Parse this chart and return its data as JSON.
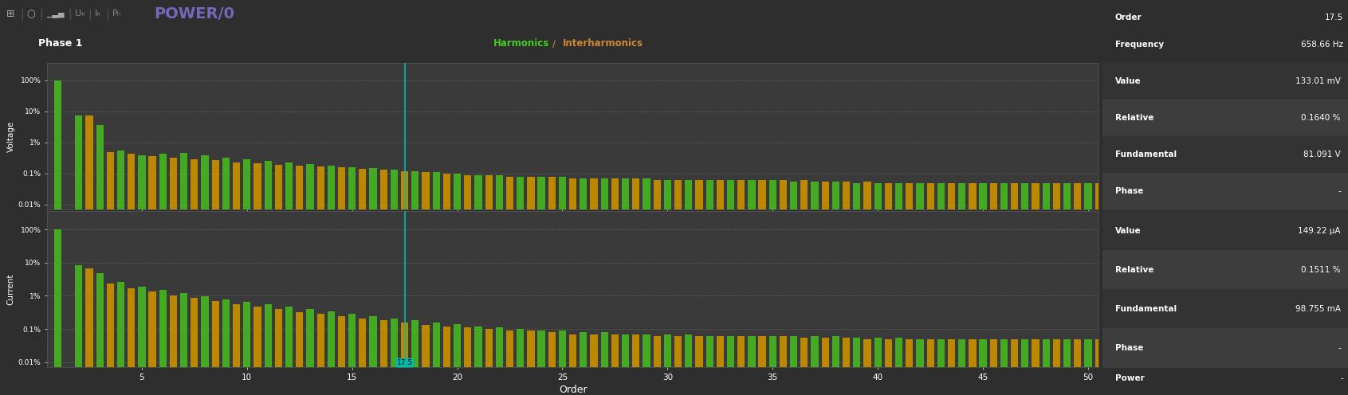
{
  "bg": "#2e2e2e",
  "toolbar_bg": "#222222",
  "label_strip_bg": "#2e2e2e",
  "plot_bg": "#3a3a3a",
  "right_bg": "#2e2e2e",
  "panel_dark": "#333333",
  "panel_light": "#3d3d3d",
  "title": "POWER/0",
  "title_color": "#7766bb",
  "phase_label": "Phase 1",
  "harm_label": "Harmonics",
  "harm_color": "#44cc22",
  "slash": "/",
  "slash_color": "#cc8833",
  "inter_label": "Interharmonics",
  "inter_color": "#cc8833",
  "volt_ylabel": "Voltage",
  "curr_ylabel": "Current",
  "xlabel": "Order",
  "selected_order": 17.5,
  "sel_color": "#00bbaa",
  "bar_green": "#44aa22",
  "bar_orange": "#bb8800",
  "grid_dash_color": "#666666",
  "ytick_labels": [
    "0.01%",
    "0.1%",
    "1%",
    "10%",
    "100%"
  ],
  "ytick_vals": [
    0.0001,
    0.001,
    0.01,
    0.1,
    1.0
  ],
  "order_str": "17.5",
  "freq_str": "658.66 Hz",
  "v_value": "133.01 mV",
  "v_relative": "0.1640 %",
  "v_fundamental": "81.091 V",
  "v_phase": "-",
  "c_value": "149.22 μA",
  "c_relative": "0.1511 %",
  "c_fundamental": "98.755 mA",
  "c_phase": "-",
  "power_val": "-",
  "v_harm_pct": [
    100,
    7.5,
    3.5,
    0.55,
    0.38,
    0.42,
    0.47,
    0.38,
    0.33,
    0.28,
    0.26,
    0.23,
    0.2,
    0.18,
    0.16,
    0.15,
    0.13,
    0.12,
    0.11,
    0.1,
    0.09,
    0.09,
    0.08,
    0.08,
    0.08,
    0.07,
    0.07,
    0.07,
    0.07,
    0.06,
    0.06,
    0.06,
    0.06,
    0.06,
    0.06,
    0.055,
    0.055,
    0.055,
    0.05,
    0.05,
    0.05,
    0.05,
    0.05,
    0.05,
    0.05,
    0.05,
    0.05,
    0.05,
    0.05,
    0.05
  ],
  "v_inter_pct": [
    0,
    7.2,
    0.48,
    0.42,
    0.37,
    0.33,
    0.29,
    0.27,
    0.23,
    0.21,
    0.19,
    0.18,
    0.17,
    0.16,
    0.14,
    0.13,
    0.12,
    0.11,
    0.1,
    0.09,
    0.09,
    0.08,
    0.08,
    0.08,
    0.07,
    0.07,
    0.07,
    0.07,
    0.06,
    0.06,
    0.06,
    0.06,
    0.06,
    0.06,
    0.06,
    0.06,
    0.055,
    0.055,
    0.055,
    0.05,
    0.05,
    0.05,
    0.05,
    0.05,
    0.05,
    0.05,
    0.05,
    0.05,
    0.05,
    0.05
  ],
  "c_harm_pct": [
    100,
    8.2,
    4.8,
    2.6,
    1.9,
    1.5,
    1.2,
    0.95,
    0.78,
    0.65,
    0.55,
    0.46,
    0.4,
    0.34,
    0.29,
    0.25,
    0.21,
    0.18,
    0.16,
    0.14,
    0.12,
    0.11,
    0.1,
    0.09,
    0.09,
    0.08,
    0.08,
    0.07,
    0.07,
    0.07,
    0.07,
    0.06,
    0.06,
    0.06,
    0.06,
    0.06,
    0.06,
    0.06,
    0.055,
    0.055,
    0.055,
    0.05,
    0.05,
    0.05,
    0.05,
    0.05,
    0.05,
    0.05,
    0.05,
    0.05
  ],
  "c_inter_pct": [
    0,
    6.8,
    2.4,
    1.7,
    1.35,
    1.05,
    0.85,
    0.68,
    0.56,
    0.46,
    0.39,
    0.33,
    0.28,
    0.24,
    0.21,
    0.18,
    0.16,
    0.13,
    0.12,
    0.11,
    0.1,
    0.09,
    0.09,
    0.08,
    0.07,
    0.07,
    0.07,
    0.07,
    0.06,
    0.06,
    0.06,
    0.06,
    0.06,
    0.06,
    0.06,
    0.055,
    0.055,
    0.055,
    0.05,
    0.05,
    0.05,
    0.05,
    0.05,
    0.05,
    0.05,
    0.05,
    0.05,
    0.05,
    0.05,
    0.05
  ]
}
